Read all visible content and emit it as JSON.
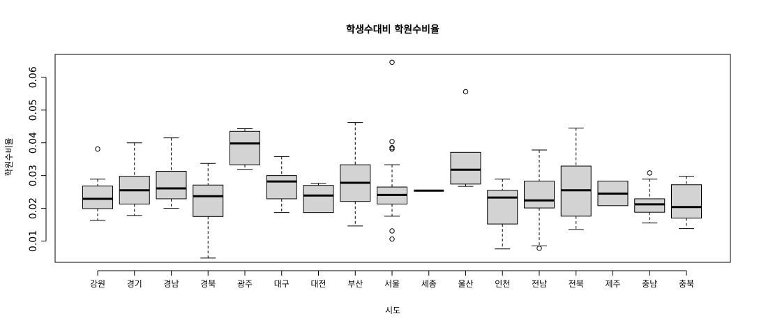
{
  "chart_data": {
    "type": "box",
    "title": "학생수대비 학원수비율",
    "xlabel": "시도",
    "ylabel": "학원수비율",
    "ylim": [
      0.0035,
      0.067
    ],
    "yticks": [
      0.01,
      0.02,
      0.03,
      0.04,
      0.05,
      0.06
    ],
    "ytick_labels": [
      "0.01",
      "0.02",
      "0.03",
      "0.04",
      "0.05",
      "0.06"
    ],
    "box_fill": "#d3d3d3",
    "categories": [
      "강원",
      "경기",
      "경남",
      "경북",
      "광주",
      "대구",
      "대전",
      "부산",
      "서울",
      "세종",
      "울산",
      "인천",
      "전남",
      "전북",
      "제주",
      "충남",
      "충북"
    ],
    "boxes": [
      {
        "name": "강원",
        "min": 0.0163,
        "q1": 0.0199,
        "median": 0.0229,
        "q3": 0.0268,
        "max": 0.0289,
        "outliers": [
          0.0381
        ]
      },
      {
        "name": "경기",
        "min": 0.0178,
        "q1": 0.0213,
        "median": 0.0255,
        "q3": 0.0298,
        "max": 0.04,
        "outliers": []
      },
      {
        "name": "경남",
        "min": 0.02,
        "q1": 0.0229,
        "median": 0.0261,
        "q3": 0.0313,
        "max": 0.0415,
        "outliers": []
      },
      {
        "name": "경북",
        "min": 0.0048,
        "q1": 0.0175,
        "median": 0.0237,
        "q3": 0.0271,
        "max": 0.0337,
        "outliers": []
      },
      {
        "name": "광주",
        "min": 0.0319,
        "q1": 0.0333,
        "median": 0.0398,
        "q3": 0.0435,
        "max": 0.0443,
        "outliers": []
      },
      {
        "name": "대구",
        "min": 0.0187,
        "q1": 0.0229,
        "median": 0.0282,
        "q3": 0.03,
        "max": 0.0358,
        "outliers": []
      },
      {
        "name": "대전",
        "min": 0.0187,
        "q1": 0.0187,
        "median": 0.0239,
        "q3": 0.027,
        "max": 0.0276,
        "outliers": []
      },
      {
        "name": "부산",
        "min": 0.0146,
        "q1": 0.0221,
        "median": 0.0278,
        "q3": 0.0333,
        "max": 0.0462,
        "outliers": []
      },
      {
        "name": "서울",
        "min": 0.0176,
        "q1": 0.0213,
        "median": 0.0241,
        "q3": 0.0265,
        "max": 0.0333,
        "outliers": [
          0.0646,
          0.0404,
          0.0385,
          0.0381,
          0.0131,
          0.0106
        ]
      },
      {
        "name": "세종",
        "min": 0.0254,
        "q1": 0.0254,
        "median": 0.0254,
        "q3": 0.0254,
        "max": 0.0254,
        "outliers": []
      },
      {
        "name": "울산",
        "min": 0.0267,
        "q1": 0.0274,
        "median": 0.0318,
        "q3": 0.0371,
        "max": 0.0371,
        "outliers": [
          0.0556
        ]
      },
      {
        "name": "인천",
        "min": 0.0076,
        "q1": 0.0152,
        "median": 0.0233,
        "q3": 0.0255,
        "max": 0.0289,
        "outliers": []
      },
      {
        "name": "전남",
        "min": 0.0085,
        "q1": 0.0201,
        "median": 0.0224,
        "q3": 0.0283,
        "max": 0.0378,
        "outliers": [
          0.0078
        ]
      },
      {
        "name": "전북",
        "min": 0.0135,
        "q1": 0.0176,
        "median": 0.0255,
        "q3": 0.0329,
        "max": 0.0445,
        "outliers": []
      },
      {
        "name": "제주",
        "min": 0.0208,
        "q1": 0.0208,
        "median": 0.0245,
        "q3": 0.0283,
        "max": 0.0283,
        "outliers": []
      },
      {
        "name": "충남",
        "min": 0.0155,
        "q1": 0.0188,
        "median": 0.0212,
        "q3": 0.0229,
        "max": 0.0289,
        "outliers": [
          0.0308
        ]
      },
      {
        "name": "충북",
        "min": 0.0138,
        "q1": 0.017,
        "median": 0.0204,
        "q3": 0.0272,
        "max": 0.0298,
        "outliers": []
      }
    ]
  }
}
